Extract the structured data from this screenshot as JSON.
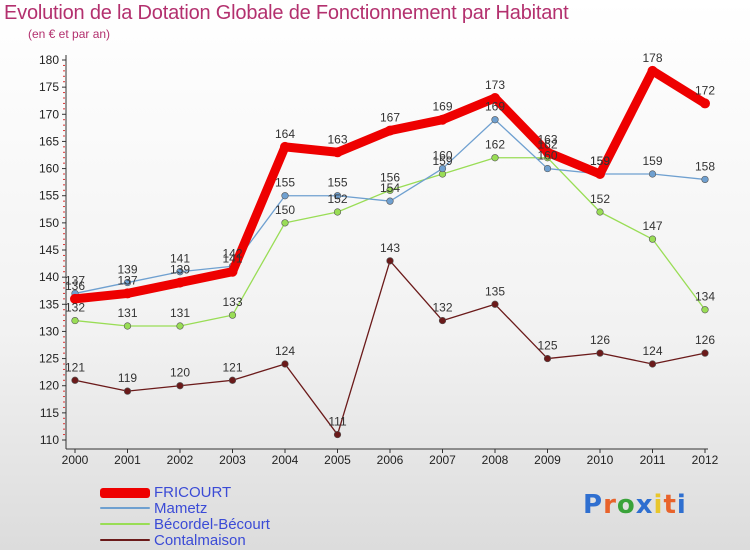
{
  "header": {
    "title": "Evolution de la Dotation Globale de Fonctionnement par Habitant",
    "subtitle": "(en € et par an)"
  },
  "logo": {
    "text": "Proxiti",
    "colors": [
      "#2f6fd0",
      "#e8632b",
      "#3aa33a",
      "#2f6fd0",
      "#e8c62b",
      "#e8632b",
      "#2f6fd0"
    ]
  },
  "chart_data": {
    "type": "line",
    "title": "Evolution de la Dotation Globale de Fonctionnement par Habitant",
    "ylabel": "(en € et par an)",
    "xlabel": "",
    "ylim": [
      110,
      180
    ],
    "yticks": [
      110,
      115,
      120,
      125,
      130,
      135,
      140,
      145,
      150,
      155,
      160,
      165,
      170,
      175,
      180
    ],
    "categories": [
      "2000",
      "2001",
      "2002",
      "2003",
      "2004",
      "2005",
      "2006",
      "2007",
      "2008",
      "2009",
      "2010",
      "2011",
      "2012"
    ],
    "series": [
      {
        "name": "FRICOURT",
        "color": "#ee0000",
        "values": [
          136,
          137,
          139,
          141,
          164,
          163,
          167,
          169,
          173,
          163,
          159,
          178,
          172
        ]
      },
      {
        "name": "Mametz",
        "color": "#6fa0d0",
        "values": [
          137,
          139,
          141,
          142,
          155,
          155,
          154,
          160,
          169,
          160,
          159,
          159,
          158
        ]
      },
      {
        "name": "Bécordel-Bécourt",
        "color": "#99dd55",
        "values": [
          132,
          131,
          131,
          133,
          150,
          152,
          156,
          159,
          162,
          162,
          152,
          147,
          134
        ]
      },
      {
        "name": "Contalmaison",
        "color": "#6b1a1a",
        "values": [
          121,
          119,
          120,
          121,
          124,
          111,
          143,
          132,
          135,
          125,
          126,
          124,
          126
        ]
      }
    ],
    "legend_position": "bottom-left",
    "grid": false
  }
}
